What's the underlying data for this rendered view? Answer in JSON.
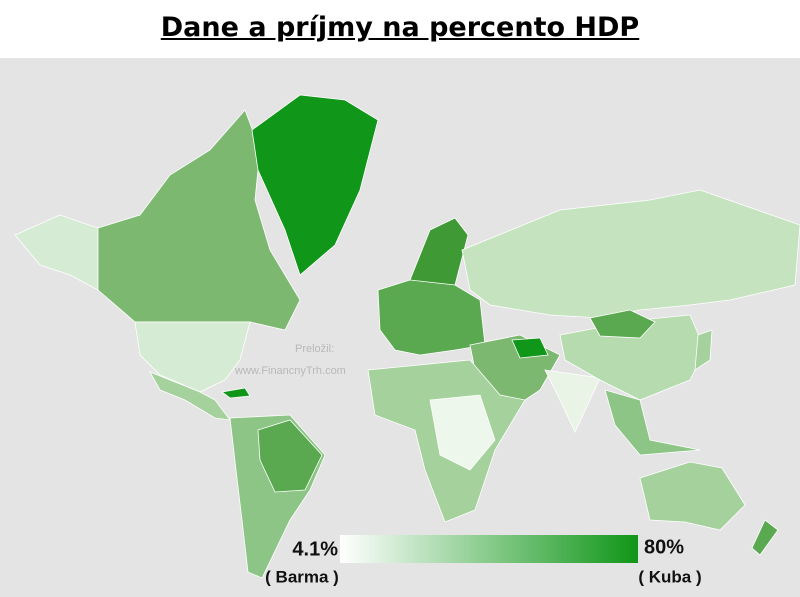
{
  "header": {
    "title": "Dane a príjmy na percento HDP"
  },
  "watermark": {
    "line1": "Preložil:",
    "line2": "www.FinancnyTrh.com"
  },
  "legend": {
    "min_label": "4.1%",
    "min_country": "( Barma )",
    "max_label": "80%",
    "max_country": "( Kuba )"
  }
}
